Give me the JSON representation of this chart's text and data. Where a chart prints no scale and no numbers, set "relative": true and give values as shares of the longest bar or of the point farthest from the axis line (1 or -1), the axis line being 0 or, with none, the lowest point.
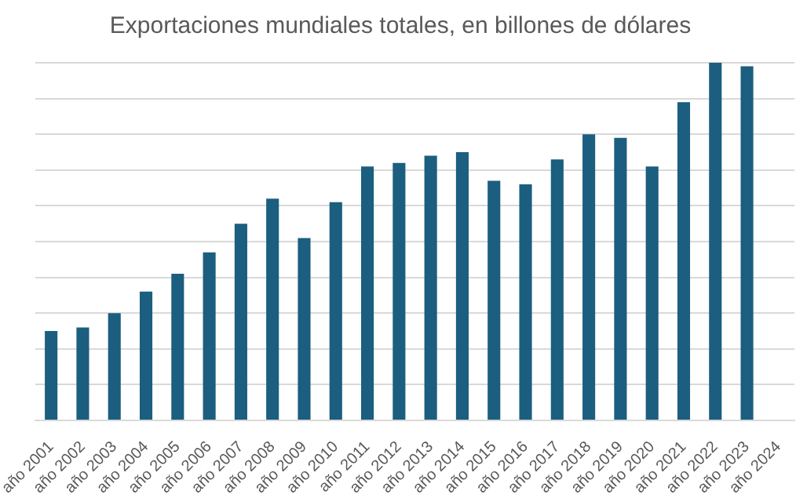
{
  "chart_data": {
    "type": "bar",
    "title": "Exportaciones mundiales totales, en billones de dólares",
    "categories": [
      "año 2001",
      "año 2002",
      "año 2003",
      "año 2004",
      "año 2005",
      "año 2006",
      "año 2007",
      "año 2008",
      "año 2009",
      "año 2010",
      "año 2011",
      "año 2012",
      "año 2013",
      "año 2014",
      "año 2015",
      "año 2016",
      "año 2017",
      "año 2018",
      "año 2019",
      "año 2020",
      "año 2021",
      "año 2022",
      "año 2023",
      "año 2024"
    ],
    "values": [
      0.25,
      0.26,
      0.3,
      0.36,
      0.41,
      0.47,
      0.55,
      0.62,
      0.51,
      0.61,
      0.71,
      0.72,
      0.74,
      0.75,
      0.67,
      0.66,
      0.73,
      0.8,
      0.79,
      0.71,
      0.89,
      1,
      0.99,
      null
    ],
    "color": "#1b5e7f",
    "relative": true,
    "grid": "y",
    "legend": false
  }
}
